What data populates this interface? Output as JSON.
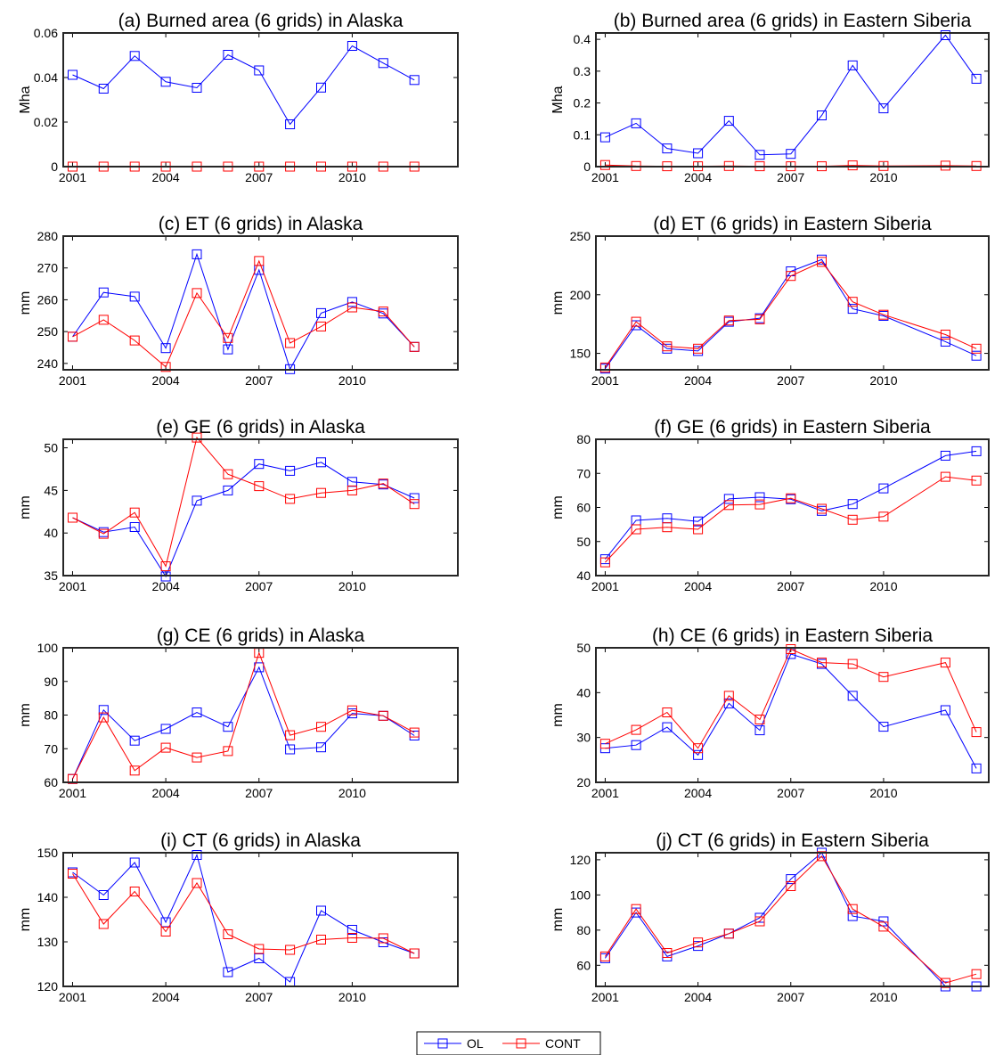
{
  "figure": {
    "background": "#ffffff"
  },
  "colors": {
    "OL": "#0000ff",
    "CONT": "#ff0000"
  },
  "legend": {
    "placement": "bottom-center",
    "entries": [
      "OL",
      "CONT"
    ]
  },
  "chart_data": [
    {
      "id": "a",
      "type": "line",
      "title": "(a) Burned area (6 grids) in Alaska",
      "ylabel": "Mha",
      "xlim": [
        2000.7,
        2013.4
      ],
      "ylim": [
        0,
        0.06
      ],
      "yticks": [
        0,
        0.02,
        0.04,
        0.06
      ],
      "ytick_labels": [
        "0",
        "0.02",
        "0.04",
        "0.06"
      ],
      "xticks": [
        2001,
        2004,
        2007,
        2010
      ],
      "xtick_labels": [
        "2001",
        "2004",
        "2007",
        "2010"
      ],
      "x": [
        2001,
        2002,
        2003,
        2004,
        2005,
        2006,
        2007,
        2008,
        2009,
        2010,
        2011,
        2012,
        2013
      ],
      "series": [
        {
          "name": "OL",
          "values": [
            0.0412,
            0.035,
            0.0497,
            0.0381,
            0.0354,
            0.0502,
            0.0432,
            0.019,
            0.0355,
            0.0542,
            0.0465,
            0.0389,
            null
          ]
        },
        {
          "name": "CONT",
          "values": [
            0,
            0,
            0,
            0,
            0,
            0,
            0,
            0,
            0,
            0,
            0,
            0,
            null
          ]
        }
      ]
    },
    {
      "id": "b",
      "type": "line",
      "title": "(b) Burned area (6 grids) in Eastern Siberia",
      "ylabel": "Mha",
      "xlim": [
        2000.7,
        2013.4
      ],
      "ylim": [
        0,
        0.42
      ],
      "yticks": [
        0,
        0.1,
        0.2,
        0.3,
        0.4
      ],
      "ytick_labels": [
        "0",
        "0.1",
        "0.2",
        "0.3",
        "0.4"
      ],
      "xticks": [
        2001,
        2004,
        2007,
        2010
      ],
      "xtick_labels": [
        "2001",
        "2004",
        "2007",
        "2010"
      ],
      "x": [
        2001,
        2002,
        2003,
        2004,
        2005,
        2006,
        2007,
        2008,
        2009,
        2010,
        2011,
        2012,
        2013
      ],
      "series": [
        {
          "name": "OL",
          "values": [
            0.092,
            0.136,
            0.057,
            0.042,
            0.144,
            0.037,
            0.04,
            0.161,
            0.318,
            0.183,
            null,
            0.413,
            0.276
          ]
        },
        {
          "name": "CONT",
          "values": [
            0.005,
            0.002,
            0.001,
            0.001,
            0.002,
            0.001,
            0.001,
            0.001,
            0.004,
            0.002,
            null,
            0.003,
            0.002
          ]
        }
      ]
    },
    {
      "id": "c",
      "type": "line",
      "title": "(c) ET (6 grids) in Alaska",
      "ylabel": "mm",
      "xlim": [
        2000.7,
        2013.4
      ],
      "ylim": [
        238,
        280
      ],
      "yticks": [
        240,
        250,
        260,
        270,
        280
      ],
      "ytick_labels": [
        "240",
        "250",
        "260",
        "270",
        "280"
      ],
      "xticks": [
        2001,
        2004,
        2007,
        2010
      ],
      "xtick_labels": [
        "2001",
        "2004",
        "2007",
        "2010"
      ],
      "x": [
        2001,
        2002,
        2003,
        2004,
        2005,
        2006,
        2007,
        2008,
        2009,
        2010,
        2011,
        2012,
        2013
      ],
      "series": [
        {
          "name": "OL",
          "values": [
            248.4,
            262.3,
            261.0,
            244.8,
            274.3,
            244.4,
            269.4,
            238.2,
            255.8,
            259.3,
            255.7,
            245.2,
            null
          ]
        },
        {
          "name": "CONT",
          "values": [
            248.4,
            253.7,
            247.2,
            238.9,
            262.1,
            248.0,
            272.2,
            246.4,
            251.6,
            257.6,
            256.3,
            245.2,
            null
          ]
        }
      ]
    },
    {
      "id": "d",
      "type": "line",
      "title": "(d) ET (6 grids) in Eastern Siberia",
      "ylabel": "mm",
      "xlim": [
        2000.7,
        2013.4
      ],
      "ylim": [
        136,
        250
      ],
      "yticks": [
        150,
        200,
        250
      ],
      "ytick_labels": [
        "150",
        "200",
        "250"
      ],
      "xticks": [
        2001,
        2004,
        2007,
        2010
      ],
      "xtick_labels": [
        "2001",
        "2004",
        "2007",
        "2010"
      ],
      "x": [
        2001,
        2002,
        2003,
        2004,
        2005,
        2006,
        2007,
        2008,
        2009,
        2010,
        2011,
        2012,
        2013
      ],
      "series": [
        {
          "name": "OL",
          "values": [
            137,
            174,
            154,
            152,
            177,
            180,
            220,
            230,
            188,
            182,
            null,
            160,
            148
          ]
        },
        {
          "name": "CONT",
          "values": [
            138,
            177,
            156,
            154,
            178,
            179,
            216,
            228,
            194,
            183,
            null,
            166,
            154
          ]
        }
      ]
    },
    {
      "id": "e",
      "type": "line",
      "title": "(e) GE (6 grids) in Alaska",
      "ylabel": "mm",
      "xlim": [
        2000.7,
        2013.4
      ],
      "ylim": [
        35,
        51
      ],
      "yticks": [
        35,
        40,
        45,
        50
      ],
      "ytick_labels": [
        "35",
        "40",
        "45",
        "50"
      ],
      "xticks": [
        2001,
        2004,
        2007,
        2010
      ],
      "xtick_labels": [
        "2001",
        "2004",
        "2007",
        "2010"
      ],
      "x": [
        2001,
        2002,
        2003,
        2004,
        2005,
        2006,
        2007,
        2008,
        2009,
        2010,
        2011,
        2012,
        2013
      ],
      "series": [
        {
          "name": "OL",
          "values": [
            41.8,
            40.1,
            40.7,
            34.9,
            43.8,
            45.0,
            48.1,
            47.3,
            48.3,
            46.0,
            45.7,
            44.1,
            null
          ]
        },
        {
          "name": "CONT",
          "values": [
            41.8,
            39.9,
            42.4,
            36.1,
            51.2,
            46.9,
            45.5,
            44.0,
            44.7,
            45.0,
            45.8,
            43.4,
            null
          ]
        }
      ]
    },
    {
      "id": "f",
      "type": "line",
      "title": "(f) GE (6 grids) in Eastern Siberia",
      "ylabel": "mm",
      "xlim": [
        2000.7,
        2013.4
      ],
      "ylim": [
        40,
        80
      ],
      "yticks": [
        40,
        50,
        60,
        70,
        80
      ],
      "ytick_labels": [
        "40",
        "50",
        "60",
        "70",
        "80"
      ],
      "xticks": [
        2001,
        2004,
        2007,
        2010
      ],
      "xtick_labels": [
        "2001",
        "2004",
        "2007",
        "2010"
      ],
      "x": [
        2001,
        2002,
        2003,
        2004,
        2005,
        2006,
        2007,
        2008,
        2009,
        2010,
        2011,
        2012,
        2013
      ],
      "series": [
        {
          "name": "OL",
          "values": [
            44.8,
            56.2,
            56.8,
            55.9,
            62.5,
            63.0,
            62.4,
            59.0,
            61.0,
            65.6,
            null,
            75.2,
            76.5
          ]
        },
        {
          "name": "CONT",
          "values": [
            43.9,
            53.6,
            54.2,
            53.6,
            60.7,
            60.9,
            62.7,
            59.6,
            56.4,
            57.3,
            null,
            69.0,
            67.9
          ]
        }
      ]
    },
    {
      "id": "g",
      "type": "line",
      "title": "(g) CE (6 grids) in Alaska",
      "ylabel": "mm",
      "xlim": [
        2000.7,
        2013.4
      ],
      "ylim": [
        60,
        100
      ],
      "yticks": [
        60,
        70,
        80,
        90,
        100
      ],
      "ytick_labels": [
        "60",
        "70",
        "80",
        "90",
        "100"
      ],
      "xticks": [
        2001,
        2004,
        2007,
        2010
      ],
      "xtick_labels": [
        "2001",
        "2004",
        "2007",
        "2010"
      ],
      "x": [
        2001,
        2002,
        2003,
        2004,
        2005,
        2006,
        2007,
        2008,
        2009,
        2010,
        2011,
        2012,
        2013
      ],
      "series": [
        {
          "name": "OL",
          "values": [
            61.0,
            81.5,
            72.4,
            75.9,
            80.8,
            76.5,
            94.2,
            69.8,
            70.4,
            80.5,
            79.8,
            73.9,
            null
          ]
        },
        {
          "name": "CONT",
          "values": [
            61.0,
            79.3,
            63.5,
            70.3,
            67.4,
            69.3,
            98.5,
            74.0,
            76.5,
            81.4,
            79.8,
            74.8,
            null
          ]
        }
      ]
    },
    {
      "id": "h",
      "type": "line",
      "title": "(h) CE (6 grids) in Eastern Siberia",
      "ylabel": "mm",
      "xlim": [
        2000.7,
        2013.4
      ],
      "ylim": [
        20,
        50
      ],
      "yticks": [
        20,
        30,
        40,
        50
      ],
      "ytick_labels": [
        "20",
        "30",
        "40",
        "50"
      ],
      "xticks": [
        2001,
        2004,
        2007,
        2010
      ],
      "xtick_labels": [
        "2001",
        "2004",
        "2007",
        "2010"
      ],
      "x": [
        2001,
        2002,
        2003,
        2004,
        2005,
        2006,
        2007,
        2008,
        2009,
        2010,
        2011,
        2012,
        2013
      ],
      "series": [
        {
          "name": "OL",
          "values": [
            27.6,
            28.3,
            32.3,
            26.1,
            37.6,
            31.6,
            48.6,
            46.4,
            39.3,
            32.4,
            null,
            36.1,
            23.1
          ]
        },
        {
          "name": "CONT",
          "values": [
            28.6,
            31.7,
            35.6,
            27.6,
            39.3,
            34.0,
            49.7,
            46.7,
            46.4,
            43.5,
            null,
            46.7,
            31.2
          ]
        }
      ]
    },
    {
      "id": "i",
      "type": "line",
      "title": "(i) CT (6 grids) in Alaska",
      "ylabel": "mm",
      "xlim": [
        2000.7,
        2013.4
      ],
      "ylim": [
        120,
        150
      ],
      "yticks": [
        120,
        130,
        140,
        150
      ],
      "ytick_labels": [
        "120",
        "130",
        "140",
        "150"
      ],
      "xticks": [
        2001,
        2004,
        2007,
        2010
      ],
      "xtick_labels": [
        "2001",
        "2004",
        "2007",
        "2010"
      ],
      "x": [
        2001,
        2002,
        2003,
        2004,
        2005,
        2006,
        2007,
        2008,
        2009,
        2010,
        2011,
        2012,
        2013
      ],
      "series": [
        {
          "name": "OL",
          "values": [
            145.6,
            140.5,
            147.8,
            134.4,
            149.5,
            123.2,
            126.3,
            121.0,
            137.0,
            132.7,
            129.9,
            127.4,
            null
          ]
        },
        {
          "name": "CONT",
          "values": [
            145.3,
            134.0,
            141.3,
            132.3,
            143.2,
            131.7,
            128.4,
            128.2,
            130.5,
            130.9,
            130.8,
            127.4,
            null
          ]
        }
      ]
    },
    {
      "id": "j",
      "type": "line",
      "title": "(j) CT (6 grids) in Eastern Siberia",
      "ylabel": "mm",
      "xlim": [
        2000.7,
        2013.4
      ],
      "ylim": [
        48,
        124
      ],
      "yticks": [
        60,
        80,
        100,
        120
      ],
      "ytick_labels": [
        "60",
        "80",
        "100",
        "120"
      ],
      "xticks": [
        2001,
        2004,
        2007,
        2010
      ],
      "xtick_labels": [
        "2001",
        "2004",
        "2007",
        "2010"
      ],
      "x": [
        2001,
        2002,
        2003,
        2004,
        2005,
        2006,
        2007,
        2008,
        2009,
        2010,
        2011,
        2012,
        2013
      ],
      "series": [
        {
          "name": "OL",
          "values": [
            64,
            90,
            65,
            71,
            78,
            87,
            109,
            124,
            88,
            85,
            null,
            48,
            48
          ]
        },
        {
          "name": "CONT",
          "values": [
            65,
            92,
            67,
            73,
            78,
            85,
            105,
            122,
            92,
            82,
            null,
            50,
            55
          ]
        }
      ]
    }
  ]
}
